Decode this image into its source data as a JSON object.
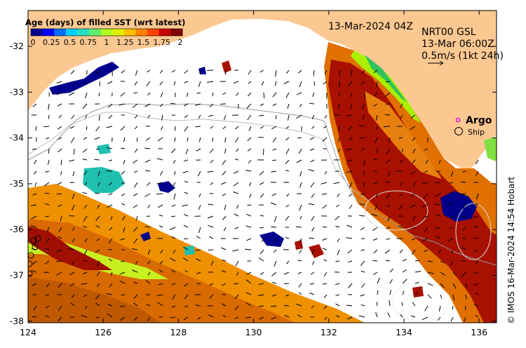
{
  "colorbar": {
    "title": "Age (days) of filled SST (wrt latest)",
    "tick_labels": [
      "0",
      "0.25",
      "0.5",
      "0.75",
      "1",
      "1.25",
      "1.5",
      "1.75",
      "2"
    ],
    "colors": [
      "#00008f",
      "#0000ff",
      "#006cff",
      "#00d0ff",
      "#28e0c0",
      "#60f070",
      "#b0ff20",
      "#e0f000",
      "#ffc000",
      "#ff8000",
      "#ff4000",
      "#c80000",
      "#800000"
    ]
  },
  "date_label": "13-Mar-2024 04Z",
  "current_legend": {
    "line1": "NRT00 GSL",
    "line2": "13-Mar 06:00Z",
    "line3": "0.5m/s (1kt 24h)"
  },
  "legend": {
    "argo": "Argo",
    "ship": "Ship"
  },
  "axes": {
    "x_ticks": [
      "124",
      "126",
      "128",
      "130",
      "132",
      "134",
      "136"
    ],
    "y_ticks": [
      "-32",
      "-33",
      "-34",
      "-35",
      "-36",
      "-37",
      "-38"
    ]
  },
  "credit": "© IMOS 16-Mar-2024 14:54 Hobart",
  "colors": {
    "land": "#fcc891",
    "water": "#ffffff",
    "frame": "#000000"
  }
}
